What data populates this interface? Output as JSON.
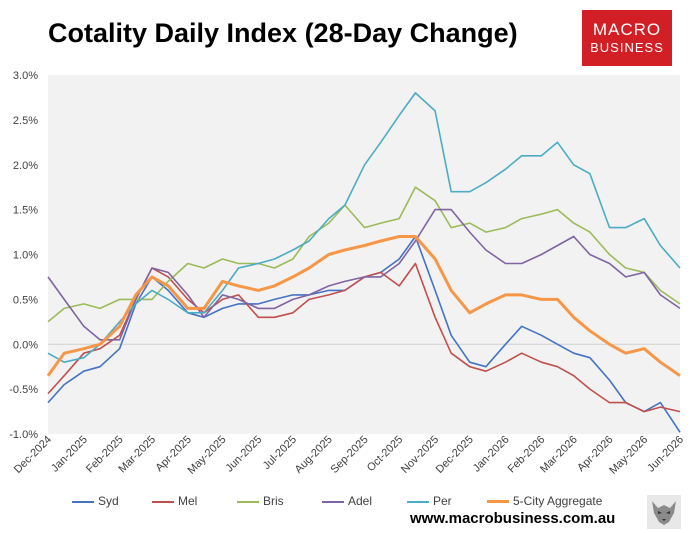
{
  "title": "Cotality Daily Index (28-Day Change)",
  "logo": {
    "line1": "MACRO",
    "line2": "BUSINESS"
  },
  "source": "www.macrobusiness.com.au",
  "colors": {
    "Syd": "#4472c4",
    "Mel": "#c0504d",
    "Bris": "#9bbb59",
    "Adel": "#8064a2",
    "Per": "#4bacc6",
    "5-City Aggregate": "#f79646",
    "plot_bg": "#f2f2f2",
    "logo": "#d11f25"
  },
  "icons": [
    "wolf-logo-icon"
  ],
  "chart_data": {
    "type": "line",
    "title": "Cotality Daily Index (28-Day Change)",
    "xlabel": "",
    "ylabel": "",
    "x_range": [
      "2024-12-01",
      "2026-06-01"
    ],
    "ylim": [
      -1.0,
      3.0
    ],
    "y_ticks": [
      "-1.0%",
      "-0.5%",
      "0.0%",
      "0.5%",
      "1.0%",
      "1.5%",
      "2.0%",
      "2.5%",
      "3.0%"
    ],
    "x_ticks": [
      "Dec-2024",
      "Jan-2025",
      "Feb-2025",
      "Mar-2025",
      "Apr-2025",
      "May-2025",
      "Jun-2025",
      "Jul-2025",
      "Aug-2025",
      "Sep-2025",
      "Oct-2025",
      "Nov-2025",
      "Dec-2025",
      "Jan-2026",
      "Feb-2026",
      "Mar-2026",
      "Apr-2026",
      "May-2026",
      "Jun-2026"
    ],
    "x_tick_dates": [
      "2024-12-01",
      "2025-01-01",
      "2025-02-01",
      "2025-03-01",
      "2025-04-01",
      "2025-05-01",
      "2025-06-01",
      "2025-07-01",
      "2025-08-01",
      "2025-09-01",
      "2025-10-01",
      "2025-11-01",
      "2025-12-01",
      "2026-01-01",
      "2026-02-01",
      "2026-03-01",
      "2026-04-01",
      "2026-05-01",
      "2026-06-01"
    ],
    "grid": {
      "y_major": false,
      "zero_line": true
    },
    "legend_position": "bottom",
    "series": [
      {
        "name": "Syd",
        "x": [
          "2024-12-01",
          "2024-12-15",
          "2025-01-01",
          "2025-01-15",
          "2025-02-01",
          "2025-02-15",
          "2025-03-01",
          "2025-03-15",
          "2025-04-01",
          "2025-04-15",
          "2025-05-01",
          "2025-05-15",
          "2025-06-01",
          "2025-06-15",
          "2025-07-01",
          "2025-07-15",
          "2025-08-01",
          "2025-08-15",
          "2025-09-01",
          "2025-09-15",
          "2025-10-01",
          "2025-10-15",
          "2025-11-01",
          "2025-11-15",
          "2025-12-01",
          "2025-12-15",
          "2026-01-01",
          "2026-01-15",
          "2026-02-01",
          "2026-02-15",
          "2026-03-01",
          "2026-03-15",
          "2026-04-01",
          "2026-04-15",
          "2026-05-01",
          "2026-05-15",
          "2026-06-01"
        ],
        "y": [
          -0.65,
          -0.45,
          -0.3,
          -0.25,
          -0.05,
          0.45,
          0.75,
          0.6,
          0.35,
          0.3,
          0.4,
          0.45,
          0.45,
          0.5,
          0.55,
          0.55,
          0.6,
          0.6,
          0.75,
          0.8,
          0.95,
          1.2,
          0.6,
          0.1,
          -0.2,
          -0.25,
          0.0,
          0.2,
          0.1,
          0.0,
          -0.1,
          -0.15,
          -0.4,
          -0.65,
          -0.75,
          -0.65,
          -0.98
        ]
      },
      {
        "name": "Mel",
        "x": [
          "2024-12-01",
          "2024-12-15",
          "2025-01-01",
          "2025-01-15",
          "2025-02-01",
          "2025-02-15",
          "2025-03-01",
          "2025-03-15",
          "2025-04-01",
          "2025-04-15",
          "2025-05-01",
          "2025-05-15",
          "2025-06-01",
          "2025-06-15",
          "2025-07-01",
          "2025-07-15",
          "2025-08-01",
          "2025-08-15",
          "2025-09-01",
          "2025-09-15",
          "2025-10-01",
          "2025-10-15",
          "2025-11-01",
          "2025-11-15",
          "2025-12-01",
          "2025-12-15",
          "2026-01-01",
          "2026-01-15",
          "2026-02-01",
          "2026-02-15",
          "2026-03-01",
          "2026-03-15",
          "2026-04-01",
          "2026-04-15",
          "2026-05-01",
          "2026-05-15",
          "2026-06-01"
        ],
        "y": [
          -0.55,
          -0.35,
          -0.1,
          -0.05,
          0.1,
          0.5,
          0.85,
          0.75,
          0.5,
          0.35,
          0.5,
          0.55,
          0.3,
          0.3,
          0.35,
          0.5,
          0.55,
          0.6,
          0.75,
          0.8,
          0.65,
          0.9,
          0.3,
          -0.1,
          -0.25,
          -0.3,
          -0.2,
          -0.1,
          -0.2,
          -0.25,
          -0.35,
          -0.5,
          -0.65,
          -0.65,
          -0.75,
          -0.7,
          -0.75
        ]
      },
      {
        "name": "Bris",
        "x": [
          "2024-12-01",
          "2024-12-15",
          "2025-01-01",
          "2025-01-15",
          "2025-02-01",
          "2025-02-15",
          "2025-03-01",
          "2025-03-15",
          "2025-04-01",
          "2025-04-15",
          "2025-05-01",
          "2025-05-15",
          "2025-06-01",
          "2025-06-15",
          "2025-07-01",
          "2025-07-15",
          "2025-08-01",
          "2025-08-15",
          "2025-09-01",
          "2025-09-15",
          "2025-10-01",
          "2025-10-15",
          "2025-11-01",
          "2025-11-15",
          "2025-12-01",
          "2025-12-15",
          "2026-01-01",
          "2026-01-15",
          "2026-02-01",
          "2026-02-15",
          "2026-03-01",
          "2026-03-15",
          "2026-04-01",
          "2026-04-15",
          "2026-05-01",
          "2026-05-15",
          "2026-06-01"
        ],
        "y": [
          0.25,
          0.4,
          0.45,
          0.4,
          0.5,
          0.5,
          0.5,
          0.7,
          0.9,
          0.85,
          0.95,
          0.9,
          0.9,
          0.85,
          0.95,
          1.2,
          1.35,
          1.55,
          1.3,
          1.35,
          1.4,
          1.75,
          1.6,
          1.3,
          1.35,
          1.25,
          1.3,
          1.4,
          1.45,
          1.5,
          1.35,
          1.25,
          1.0,
          0.85,
          0.8,
          0.6,
          0.45
        ]
      },
      {
        "name": "Adel",
        "x": [
          "2024-12-01",
          "2024-12-15",
          "2025-01-01",
          "2025-01-15",
          "2025-02-01",
          "2025-02-15",
          "2025-03-01",
          "2025-03-15",
          "2025-04-01",
          "2025-04-15",
          "2025-05-01",
          "2025-05-15",
          "2025-06-01",
          "2025-06-15",
          "2025-07-01",
          "2025-07-15",
          "2025-08-01",
          "2025-08-15",
          "2025-09-01",
          "2025-09-15",
          "2025-10-01",
          "2025-10-15",
          "2025-11-01",
          "2025-11-15",
          "2025-12-01",
          "2025-12-15",
          "2026-01-01",
          "2026-01-15",
          "2026-02-01",
          "2026-02-15",
          "2026-03-01",
          "2026-03-15",
          "2026-04-01",
          "2026-04-15",
          "2026-05-01",
          "2026-05-15",
          "2026-06-01"
        ],
        "y": [
          0.75,
          0.5,
          0.2,
          0.05,
          0.05,
          0.5,
          0.85,
          0.8,
          0.55,
          0.3,
          0.55,
          0.5,
          0.4,
          0.4,
          0.5,
          0.55,
          0.65,
          0.7,
          0.75,
          0.75,
          0.9,
          1.15,
          1.5,
          1.5,
          1.25,
          1.05,
          0.9,
          0.9,
          1.0,
          1.1,
          1.2,
          1.0,
          0.9,
          0.75,
          0.8,
          0.55,
          0.4
        ]
      },
      {
        "name": "Per",
        "x": [
          "2024-12-01",
          "2024-12-15",
          "2025-01-01",
          "2025-01-15",
          "2025-02-01",
          "2025-02-15",
          "2025-03-01",
          "2025-03-15",
          "2025-04-01",
          "2025-04-15",
          "2025-05-01",
          "2025-05-15",
          "2025-06-01",
          "2025-06-15",
          "2025-07-01",
          "2025-07-15",
          "2025-08-01",
          "2025-08-15",
          "2025-09-01",
          "2025-09-15",
          "2025-10-01",
          "2025-10-15",
          "2025-11-01",
          "2025-11-15",
          "2025-12-01",
          "2025-12-15",
          "2026-01-01",
          "2026-01-15",
          "2026-02-01",
          "2026-02-15",
          "2026-03-01",
          "2026-03-15",
          "2026-04-01",
          "2026-04-15",
          "2026-05-01",
          "2026-05-15",
          "2026-06-01"
        ],
        "y": [
          -0.1,
          -0.2,
          -0.15,
          0.0,
          0.25,
          0.45,
          0.6,
          0.5,
          0.35,
          0.35,
          0.6,
          0.85,
          0.9,
          0.95,
          1.05,
          1.15,
          1.4,
          1.55,
          2.0,
          2.25,
          2.55,
          2.8,
          2.6,
          1.7,
          1.7,
          1.8,
          1.95,
          2.1,
          2.1,
          2.25,
          2.0,
          1.9,
          1.3,
          1.3,
          1.4,
          1.1,
          0.85
        ]
      },
      {
        "name": "5-City Aggregate",
        "x": [
          "2024-12-01",
          "2024-12-15",
          "2025-01-01",
          "2025-01-15",
          "2025-02-01",
          "2025-02-15",
          "2025-03-01",
          "2025-03-15",
          "2025-04-01",
          "2025-04-15",
          "2025-05-01",
          "2025-05-15",
          "2025-06-01",
          "2025-06-15",
          "2025-07-01",
          "2025-07-15",
          "2025-08-01",
          "2025-08-15",
          "2025-09-01",
          "2025-09-15",
          "2025-10-01",
          "2025-10-15",
          "2025-11-01",
          "2025-11-15",
          "2025-12-01",
          "2025-12-15",
          "2026-01-01",
          "2026-01-15",
          "2026-02-01",
          "2026-02-15",
          "2026-03-01",
          "2026-03-15",
          "2026-04-01",
          "2026-04-15",
          "2026-05-01",
          "2026-05-15",
          "2026-06-01"
        ],
        "y": [
          -0.35,
          -0.1,
          -0.05,
          0.0,
          0.2,
          0.55,
          0.75,
          0.65,
          0.4,
          0.4,
          0.7,
          0.65,
          0.6,
          0.65,
          0.75,
          0.85,
          1.0,
          1.05,
          1.1,
          1.15,
          1.2,
          1.2,
          0.95,
          0.6,
          0.35,
          0.45,
          0.55,
          0.55,
          0.5,
          0.5,
          0.3,
          0.15,
          0.0,
          -0.1,
          -0.05,
          -0.2,
          -0.35
        ]
      }
    ]
  }
}
